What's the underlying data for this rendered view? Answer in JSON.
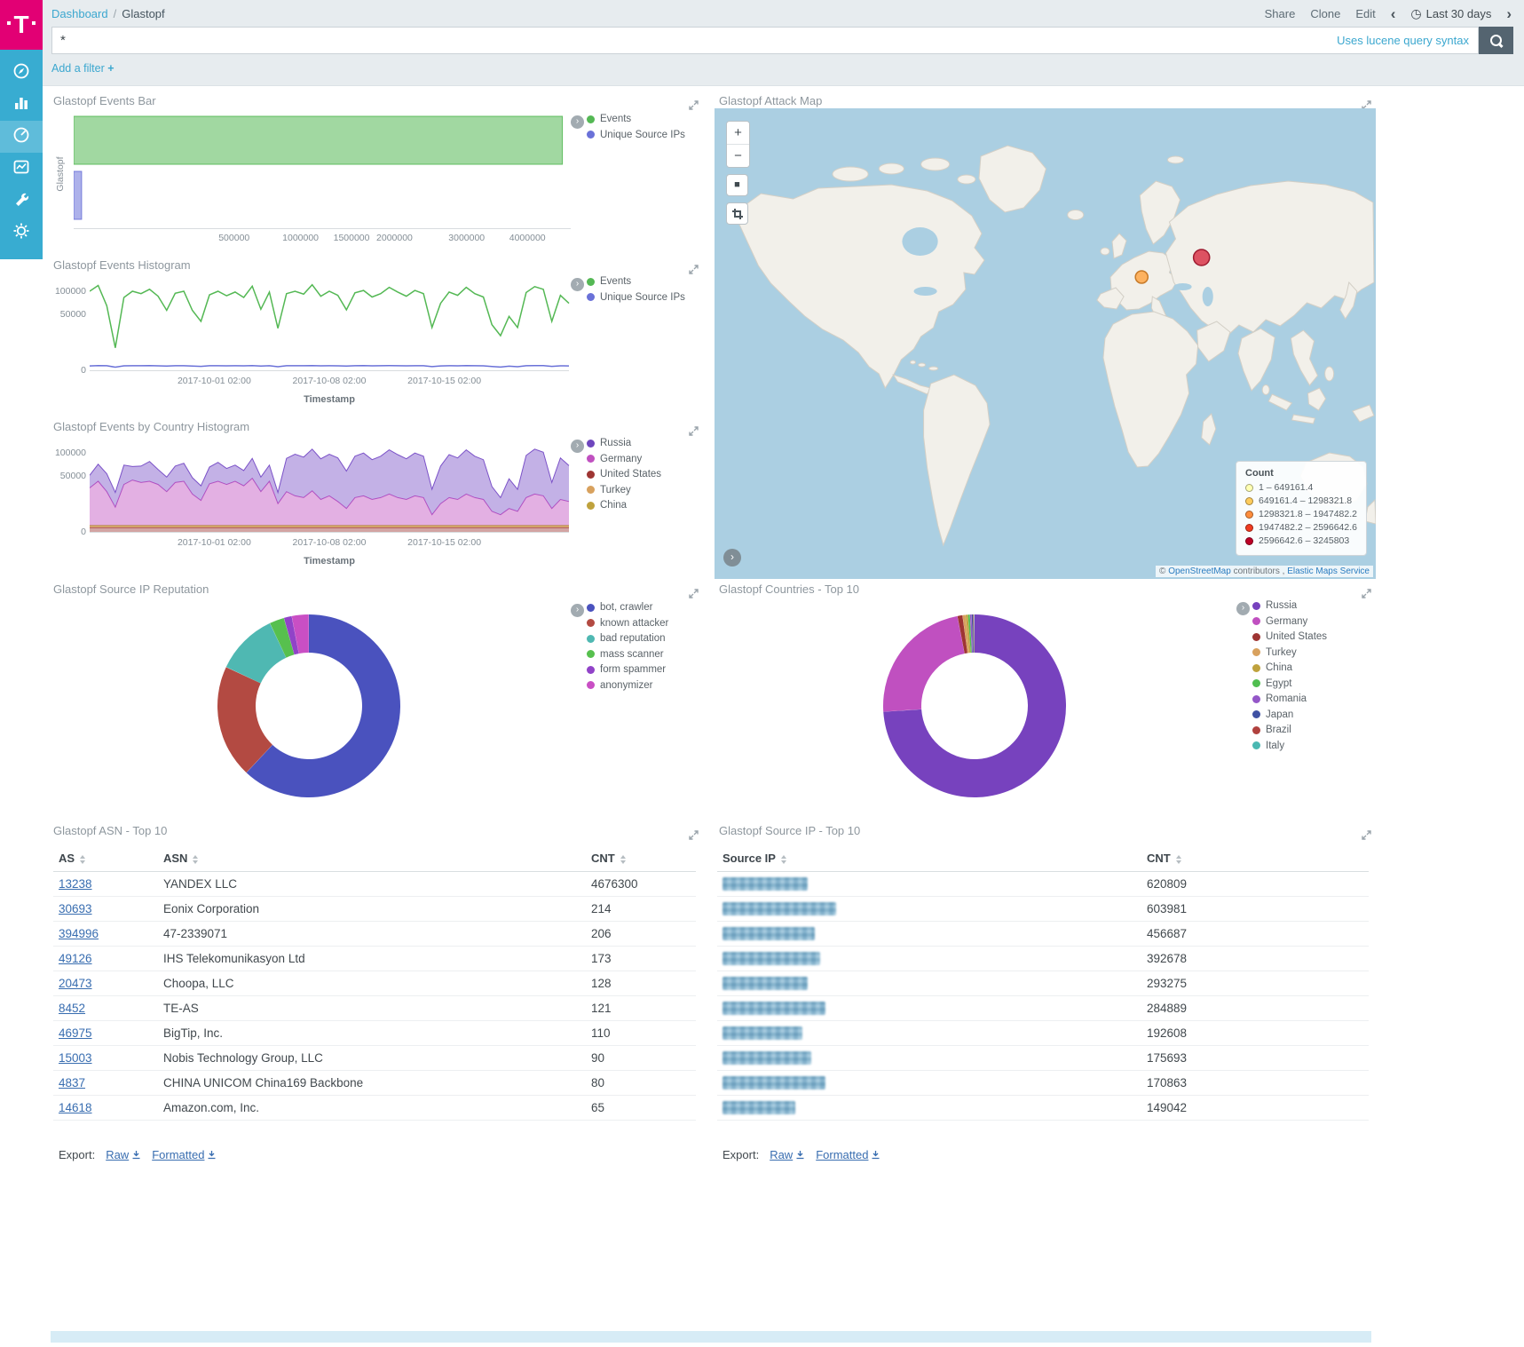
{
  "app": {
    "logo_letter": "T"
  },
  "icons": {
    "chevron_left": "‹",
    "chevron_right": "›",
    "clock": "◷",
    "legend_toggle": "›",
    "zoom_in": "+",
    "zoom_out": "−",
    "fit_square": "■",
    "copyright": "©"
  },
  "header": {
    "breadcrumb_root": "Dashboard",
    "breadcrumb_sep": "/",
    "breadcrumb_current": "Glastopf",
    "share": "Share",
    "clone": "Clone",
    "edit": "Edit",
    "time_range": "Last 30 days"
  },
  "query_bar": {
    "value": "*",
    "hint": "Uses lucene query syntax"
  },
  "filter_bar": {
    "add_filter": "Add a filter",
    "plus": "+"
  },
  "export": {
    "label": "Export:",
    "raw": "Raw",
    "formatted": "Formatted"
  },
  "panels": {
    "events_bar": {
      "title": "Glastopf Events Bar",
      "y_label": "Glastopf",
      "legend": [
        {
          "label": "Events",
          "color": "#54B854"
        },
        {
          "label": "Unique Source IPs",
          "color": "#6A71D8"
        }
      ]
    },
    "events_histogram": {
      "title": "Glastopf Events Histogram",
      "legend": [
        {
          "label": "Events",
          "color": "#54B854"
        },
        {
          "label": "Unique Source IPs",
          "color": "#6A71D8"
        }
      ]
    },
    "country_histogram": {
      "title": "Glastopf Events by Country Histogram",
      "legend": [
        {
          "label": "Russia",
          "color": "#6E46BE"
        },
        {
          "label": "Germany",
          "color": "#C050C0"
        },
        {
          "label": "United States",
          "color": "#9E3533"
        },
        {
          "label": "Turkey",
          "color": "#D8A15E"
        },
        {
          "label": "China",
          "color": "#BFA23D"
        }
      ]
    },
    "attack_map": {
      "title": "Glastopf Attack Map",
      "legend_title": "Count",
      "legend_ranges": [
        {
          "label": "1 – 649161.4",
          "color": "#FFFFB2"
        },
        {
          "label": "649161.4 – 1298321.8",
          "color": "#FECC5C"
        },
        {
          "label": "1298321.8 – 1947482.2",
          "color": "#FD8D3C"
        },
        {
          "label": "1947482.2 – 2596642.6",
          "color": "#F03B20"
        },
        {
          "label": "2596642.6 – 3245803",
          "color": "#BD0026"
        }
      ],
      "attribution": {
        "copyright": "©",
        "osm_link": "OpenStreetMap",
        "contributors": "contributors",
        "separator": ",",
        "ems_link": "Elastic Maps Service"
      }
    },
    "reputation": {
      "title": "Glastopf Source IP Reputation",
      "legend": [
        {
          "label": "bot, crawler",
          "color": "#4A52BE"
        },
        {
          "label": "known attacker",
          "color": "#B34A42"
        },
        {
          "label": "bad reputation",
          "color": "#4FB8B2"
        },
        {
          "label": "mass scanner",
          "color": "#57C04E"
        },
        {
          "label": "form spammer",
          "color": "#9143C8"
        },
        {
          "label": "anonymizer",
          "color": "#C94FC4"
        }
      ]
    },
    "countries": {
      "title": "Glastopf Countries - Top 10",
      "legend": [
        {
          "label": "Russia",
          "color": "#7742BE"
        },
        {
          "label": "Germany",
          "color": "#C050C0"
        },
        {
          "label": "United States",
          "color": "#9E3533"
        },
        {
          "label": "Turkey",
          "color": "#D8A15E"
        },
        {
          "label": "China",
          "color": "#BFA23D"
        },
        {
          "label": "Egypt",
          "color": "#50BE50"
        },
        {
          "label": "Romania",
          "color": "#9457C8"
        },
        {
          "label": "Japan",
          "color": "#3F51A3"
        },
        {
          "label": "Brazil",
          "color": "#B0413E"
        },
        {
          "label": "Italy",
          "color": "#4AB8B2"
        }
      ]
    },
    "asn_table": {
      "title": "Glastopf ASN - Top 10",
      "columns": [
        "AS",
        "ASN",
        "CNT"
      ],
      "rows": [
        [
          "13238",
          "YANDEX LLC",
          "4676300"
        ],
        [
          "30693",
          "Eonix Corporation",
          "214"
        ],
        [
          "394996",
          "47-2339071",
          "206"
        ],
        [
          "49126",
          "IHS Telekomunikasyon Ltd",
          "173"
        ],
        [
          "20473",
          "Choopa, LLC",
          "128"
        ],
        [
          "8452",
          "TE-AS",
          "121"
        ],
        [
          "46975",
          "BigTip, Inc.",
          "110"
        ],
        [
          "15003",
          "Nobis Technology Group, LLC",
          "90"
        ],
        [
          "4837",
          "CHINA UNICOM China169 Backbone",
          "80"
        ],
        [
          "14618",
          "Amazon.com, Inc.",
          "65"
        ]
      ]
    },
    "source_ip_table": {
      "title": "Glastopf Source IP - Top 10",
      "columns": [
        "Source IP",
        "CNT"
      ],
      "rows": [
        {
          "masked": true,
          "mask_width": 96,
          "cnt": "620809"
        },
        {
          "masked": true,
          "mask_width": 128,
          "cnt": "603981"
        },
        {
          "masked": true,
          "mask_width": 104,
          "cnt": "456687"
        },
        {
          "masked": true,
          "mask_width": 110,
          "cnt": "392678"
        },
        {
          "masked": true,
          "mask_width": 96,
          "cnt": "293275"
        },
        {
          "masked": true,
          "mask_width": 116,
          "cnt": "284889"
        },
        {
          "masked": true,
          "mask_width": 90,
          "cnt": "192608"
        },
        {
          "masked": true,
          "mask_width": 100,
          "cnt": "175693"
        },
        {
          "masked": true,
          "mask_width": 116,
          "cnt": "170863"
        },
        {
          "masked": true,
          "mask_width": 82,
          "cnt": "149042"
        }
      ]
    }
  },
  "chart_data": [
    {
      "id": "events_bar",
      "type": "bar",
      "orientation": "horizontal",
      "scale": "squareroot",
      "category": "Glastopf",
      "series": [
        {
          "name": "Events",
          "value": 4640000,
          "color": "#54B854"
        },
        {
          "name": "Unique Source IPs",
          "value": 1200,
          "color": "#6A71D8"
        }
      ],
      "xticks": [
        500000,
        1000000,
        1500000,
        2000000,
        3000000,
        4000000
      ],
      "xmax": 4800000
    },
    {
      "id": "events_histogram",
      "type": "line",
      "scale": "squareroot",
      "ymax": 125000,
      "yticks": [
        0,
        50000,
        100000
      ],
      "xticks": [
        {
          "label": "2017-10-01 02:00",
          "pos": 0.26
        },
        {
          "label": "2017-10-08 02:00",
          "pos": 0.5
        },
        {
          "label": "2017-10-15 02:00",
          "pos": 0.74
        }
      ],
      "xlabel": "Timestamp",
      "series": [
        {
          "name": "Events",
          "color": "#54B854",
          "values": [
            99000,
            114000,
            66000,
            8000,
            84000,
            99000,
            93000,
            104000,
            87000,
            57000,
            94000,
            99000,
            57000,
            38000,
            90000,
            99000,
            88000,
            97000,
            84000,
            112000,
            59000,
            97000,
            28000,
            93000,
            99000,
            92000,
            116000,
            87000,
            99000,
            89000,
            58000,
            95000,
            101000,
            85000,
            93000,
            109000,
            97000,
            87000,
            101000,
            93000,
            29000,
            71000,
            97000,
            89000,
            109000,
            93000,
            85000,
            33000,
            19000,
            46000,
            29000,
            96000,
            111000,
            104000,
            38000,
            89000,
            71000
          ]
        },
        {
          "name": "Unique Source IPs",
          "color": "#6A71D8",
          "values": [
            300,
            350,
            320,
            150,
            310,
            330,
            325,
            335,
            315,
            280,
            325,
            330,
            285,
            240,
            320,
            330,
            315,
            325,
            310,
            345,
            285,
            325,
            200,
            320,
            330,
            320,
            355,
            315,
            330,
            315,
            280,
            325,
            335,
            310,
            320,
            340,
            325,
            315,
            330,
            320,
            210,
            300,
            325,
            315,
            340,
            320,
            310,
            220,
            160,
            260,
            200,
            325,
            350,
            335,
            240,
            315,
            300
          ]
        }
      ]
    },
    {
      "id": "country_histogram",
      "type": "area_stacked",
      "scale": "squareroot",
      "ymax": 125000,
      "yticks": [
        0,
        50000,
        100000
      ],
      "xticks": [
        {
          "label": "2017-10-01 02:00",
          "pos": 0.26
        },
        {
          "label": "2017-10-08 02:00",
          "pos": 0.5
        },
        {
          "label": "2017-10-15 02:00",
          "pos": 0.74
        }
      ],
      "xlabel": "Timestamp",
      "series": [
        {
          "name": "United States",
          "color": "#9E3533",
          "values": 300
        },
        {
          "name": "Turkey",
          "color": "#D8A15E",
          "values": 200
        },
        {
          "name": "China",
          "color": "#BFA23D",
          "values": 150
        },
        {
          "name": "Germany",
          "color": "#C050C0",
          "values": [
            30000,
            40000,
            25000,
            9000,
            35000,
            42000,
            38000,
            40000,
            35000,
            25000,
            38000,
            40000,
            22000,
            15000,
            36000,
            40000,
            35000,
            40000,
            33000,
            45000,
            25000,
            40000,
            12000,
            25000,
            20000,
            18000,
            26000,
            16000,
            20000,
            14000,
            8000,
            18000,
            20000,
            16000,
            18000,
            22000,
            18000,
            16000,
            20000,
            18000,
            4000,
            12000,
            18000,
            16000,
            22000,
            18000,
            16000,
            6000,
            4000,
            8000,
            6000,
            18000,
            22000,
            20000,
            8000,
            16000,
            14000
          ]
        },
        {
          "name": "Russia",
          "color": "#7B52C8",
          "values": [
            20000,
            32000,
            28000,
            15000,
            35000,
            25000,
            30000,
            38000,
            26000,
            22000,
            30000,
            34000,
            24000,
            18000,
            30000,
            36000,
            28000,
            30000,
            26000,
            40000,
            22000,
            30000,
            12000,
            60000,
            75000,
            70000,
            82000,
            68000,
            75000,
            72000,
            50000,
            72000,
            78000,
            66000,
            72000,
            84000,
            76000,
            68000,
            78000,
            72000,
            24000,
            56000,
            76000,
            70000,
            84000,
            72000,
            66000,
            26000,
            14000,
            36000,
            22000,
            74000,
            86000,
            80000,
            30000,
            70000,
            55000
          ]
        }
      ]
    },
    {
      "id": "reputation_donut",
      "type": "pie",
      "donut": true,
      "slices": [
        {
          "label": "bot, crawler",
          "value": 62,
          "color": "#4A52BE"
        },
        {
          "label": "known attacker",
          "value": 20,
          "color": "#B34A42"
        },
        {
          "label": "bad reputation",
          "value": 11,
          "color": "#4FB8B2"
        },
        {
          "label": "mass scanner",
          "value": 2.6,
          "color": "#57C04E"
        },
        {
          "label": "form spammer",
          "value": 1.4,
          "color": "#9143C8"
        },
        {
          "label": "anonymizer",
          "value": 3,
          "color": "#C94FC4"
        }
      ]
    },
    {
      "id": "countries_donut",
      "type": "pie",
      "donut": true,
      "slices": [
        {
          "label": "Russia",
          "value": 74,
          "color": "#7742BE"
        },
        {
          "label": "Germany",
          "value": 23,
          "color": "#C050C0"
        },
        {
          "label": "United States",
          "value": 0.9,
          "color": "#9E3533"
        },
        {
          "label": "Turkey",
          "value": 0.55,
          "color": "#D8A15E"
        },
        {
          "label": "China",
          "value": 0.4,
          "color": "#BFA23D"
        },
        {
          "label": "Egypt",
          "value": 0.35,
          "color": "#50BE50"
        },
        {
          "label": "Romania",
          "value": 0.3,
          "color": "#9457C8"
        },
        {
          "label": "Japan",
          "value": 0.25,
          "color": "#3F51A3"
        },
        {
          "label": "Brazil",
          "value": 0.15,
          "color": "#B0413E"
        },
        {
          "label": "Italy",
          "value": 0.1,
          "color": "#4AB8B2"
        }
      ]
    },
    {
      "id": "attack_map",
      "type": "map_points",
      "points": [
        {
          "x": 478,
          "y": 190,
          "r": 7,
          "color": "#FEA94C",
          "stroke": "#C77A28"
        },
        {
          "x": 545,
          "y": 168,
          "r": 9,
          "color": "#DA3B4E",
          "stroke": "#9E1B30"
        }
      ]
    }
  ]
}
